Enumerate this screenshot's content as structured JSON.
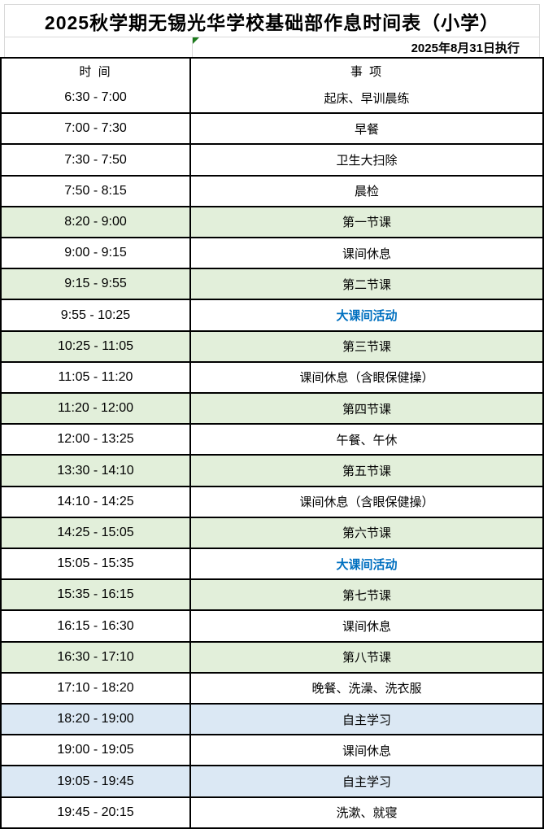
{
  "page": {
    "title": "2025秋学期无锡光华学校基础部作息时间表（小学）",
    "effective_date": "2025年8月31日执行"
  },
  "table": {
    "headers": {
      "time": "时  间",
      "event": "事  项"
    },
    "rows": [
      {
        "time": "6:30 - 7:00",
        "event": "起床、早训晨练",
        "bg": "white"
      },
      {
        "time": "7:00 - 7:30",
        "event": "早餐",
        "bg": "white"
      },
      {
        "time": "7:30 - 7:50",
        "event": "卫生大扫除",
        "bg": "white"
      },
      {
        "time": "7:50 - 8:15",
        "event": "晨检",
        "bg": "white"
      },
      {
        "time": "8:20 - 9:00",
        "event": "第一节课",
        "bg": "green"
      },
      {
        "time": "9:00 - 9:15",
        "event": "课间休息",
        "bg": "white"
      },
      {
        "time": "9:15 - 9:55",
        "event": "第二节课",
        "bg": "green"
      },
      {
        "time": "9:55 - 10:25",
        "event": "大课间活动",
        "bg": "white",
        "style": "blue-text"
      },
      {
        "time": "10:25 - 11:05",
        "event": "第三节课",
        "bg": "green"
      },
      {
        "time": "11:05 - 11:20",
        "event": "课间休息（含眼保健操）",
        "bg": "white"
      },
      {
        "time": "11:20 - 12:00",
        "event": "第四节课",
        "bg": "green"
      },
      {
        "time": "12:00 - 13:25",
        "event": "午餐、午休",
        "bg": "white"
      },
      {
        "time": "13:30 - 14:10",
        "event": "第五节课",
        "bg": "green"
      },
      {
        "time": "14:10 - 14:25",
        "event": "课间休息（含眼保健操）",
        "bg": "white"
      },
      {
        "time": "14:25 - 15:05",
        "event": "第六节课",
        "bg": "green"
      },
      {
        "time": "15:05 - 15:35",
        "event": "大课间活动",
        "bg": "white",
        "style": "blue-text"
      },
      {
        "time": "15:35 - 16:15",
        "event": "第七节课",
        "bg": "green"
      },
      {
        "time": "16:15 - 16:30",
        "event": "课间休息",
        "bg": "white"
      },
      {
        "time": "16:30 - 17:10",
        "event": "第八节课",
        "bg": "green"
      },
      {
        "time": "17:10 - 18:20",
        "event": "晚餐、洗澡、洗衣服",
        "bg": "white"
      },
      {
        "time": "18:20 - 19:00",
        "event": "自主学习",
        "bg": "blue"
      },
      {
        "time": "19:00 - 19:05",
        "event": "课间休息",
        "bg": "white"
      },
      {
        "time": "19:05 - 19:45",
        "event": "自主学习",
        "bg": "blue"
      },
      {
        "time": "19:45 - 20:15",
        "event": "洗漱、就寝",
        "bg": "white"
      }
    ]
  },
  "colors": {
    "class_row_fill": "#e2efda",
    "self_study_row_fill": "#dbe8f4",
    "activity_text": "#0070c0",
    "grid_border": "#000000",
    "light_border": "#d9d9d9",
    "corner_flag": "#1c7a1c"
  }
}
